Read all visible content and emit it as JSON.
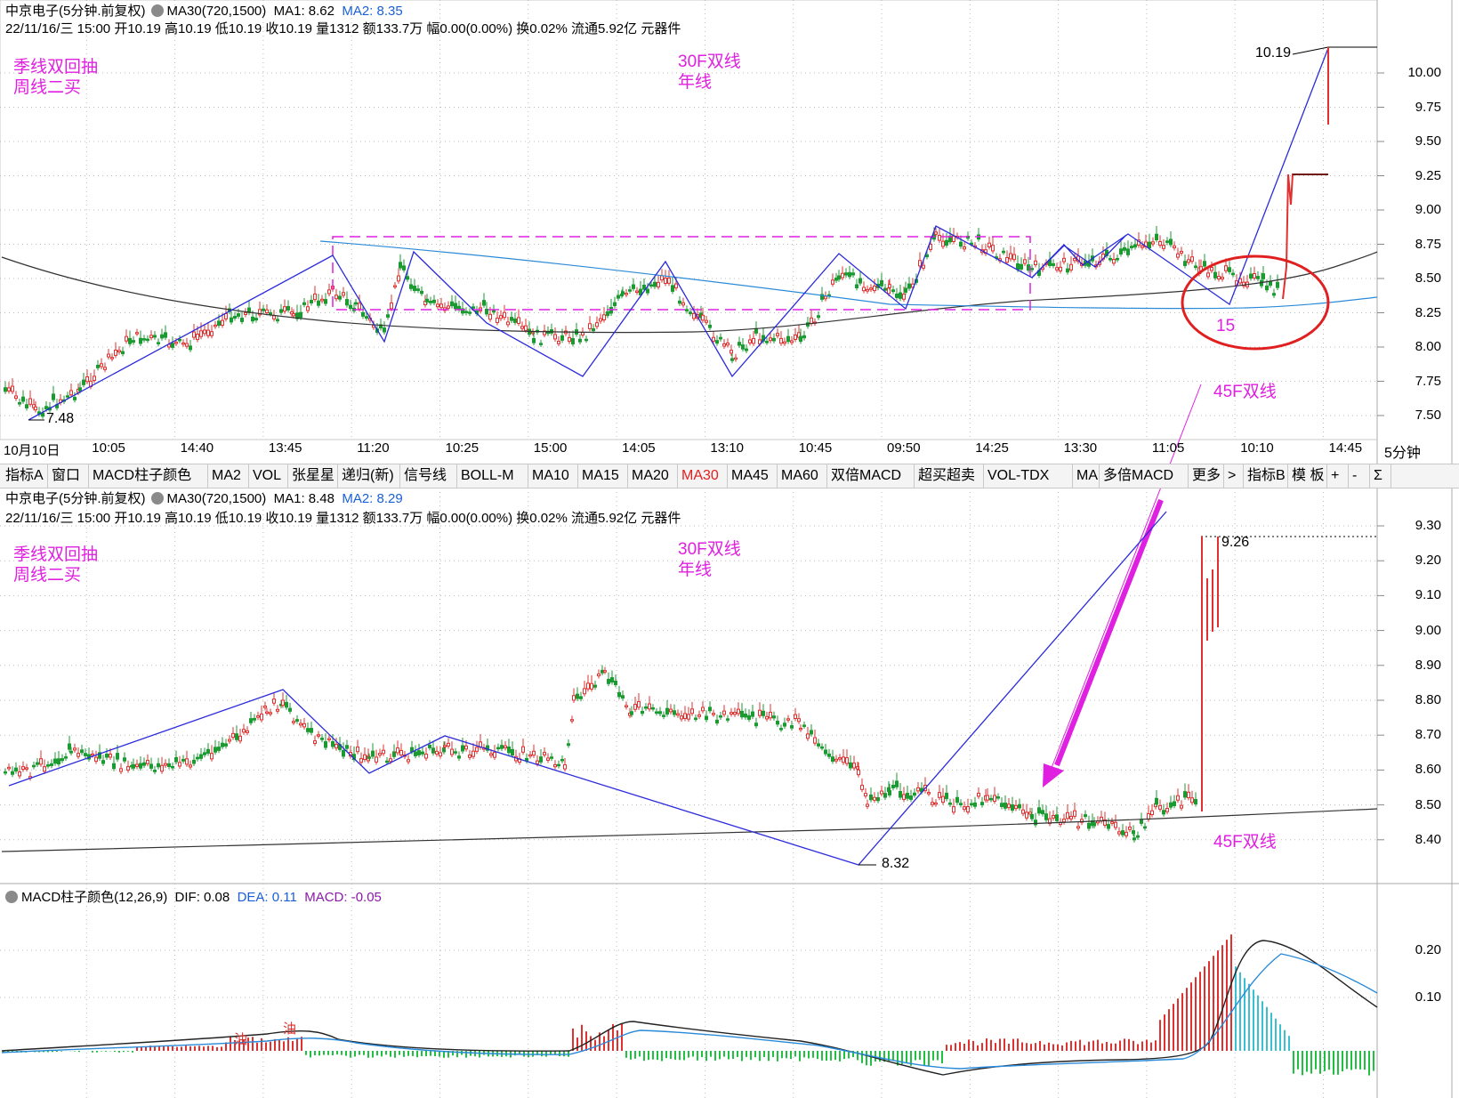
{
  "top_panel": {
    "title": "中京电子(5分钟.前复权)",
    "indicator": "MA30(720,1500)",
    "ma1_label": "MA1: 8.62",
    "ma2_label": "MA2: 8.35",
    "quote_line": "22/11/16/三 15:00 开10.19 高10.19 低10.19 收10.19 量1312 额133.7万 幅0.00(0.00%) 换0.02% 流通5.92亿 元器件",
    "note_left": "季线双回抽\n周线二买",
    "note_mid": "30F双线\n年线",
    "note_circle_label": "15",
    "note_45f": "45F双线",
    "high_label": "10.19",
    "low_label": "7.48",
    "price_ticks": [
      "10.00",
      "9.75",
      "9.50",
      "9.25",
      "9.00",
      "8.75",
      "8.50",
      "8.25",
      "8.00",
      "7.75",
      "7.50"
    ],
    "time_labels": [
      "10月10日",
      "10:05",
      "14:40",
      "13:45",
      "11:20",
      "10:25",
      "15:00",
      "14:05",
      "13:10",
      "10:45",
      "09:50",
      "14:25",
      "13:30",
      "11:05",
      "10:10",
      "14:45"
    ],
    "period": "5分钟"
  },
  "toolbar": {
    "items": [
      "指标A",
      "窗口",
      "MACD柱子颜色",
      "MA2",
      "VOL",
      "张星星",
      "递归(新)",
      "信号线",
      "BOLL-M",
      "MA10",
      "MA15",
      "MA20",
      "MA30",
      "MA45",
      "MA60",
      "双倍MACD",
      "超买超卖",
      "VOL-TDX",
      "MA",
      "多倍MACD",
      "更多",
      ">",
      "指标B",
      "模 板",
      "+",
      "-",
      "Σ"
    ],
    "active": "MA30"
  },
  "mid_panel": {
    "title": "中京电子(5分钟.前复权)",
    "indicator": "MA30(720,1500)",
    "ma1_label": "MA1: 8.48",
    "ma2_label": "MA2: 8.29",
    "quote_line": "22/11/16/三 15:00 开10.19 高10.19 低10.19 收10.19 量1312 额133.7万 幅0.00(0.00%) 换0.02% 流通5.92亿 元器件",
    "note_left": "季线双回抽\n周线二买",
    "note_mid": "30F双线\n年线",
    "note_45f": "45F双线",
    "high_label": "9.26",
    "low_label": "8.32",
    "price_ticks": [
      "9.30",
      "9.20",
      "9.10",
      "9.00",
      "8.90",
      "8.80",
      "8.70",
      "8.60",
      "8.50",
      "8.40"
    ]
  },
  "macd_panel": {
    "title": "MACD柱子颜色(12,26,9)",
    "dif_label": "DIF: 0.08",
    "dea_label": "DEA: 0.11",
    "macd_label": "MACD: -0.05",
    "marker_char": "油",
    "ticks": [
      "0.20",
      "0.10"
    ]
  },
  "colors": {
    "up": "#e03030",
    "down": "#1a9a30",
    "stroke_line": "#2b2bdc",
    "ma_long": "#333333",
    "ma_short": "#2a8ad8",
    "annotation": "#e020e0",
    "circle": "#e02020"
  }
}
